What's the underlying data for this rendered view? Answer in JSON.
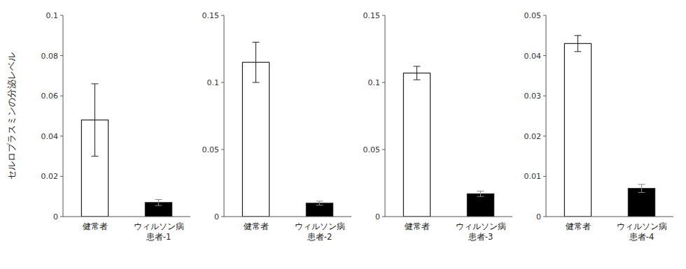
{
  "chart_data": [
    {
      "type": "bar",
      "ylabel": "セルロプラスミンの分泌レベル",
      "categories": [
        "健常者",
        "ウィルソン病\n患者-1"
      ],
      "values": [
        0.048,
        0.007
      ],
      "errors": [
        0.018,
        0.0015
      ],
      "colors": [
        "white",
        "black"
      ],
      "ylim": [
        0,
        0.1
      ],
      "yticks": [
        0,
        0.02,
        0.04,
        0.06,
        0.08,
        0.1
      ],
      "grid": false
    },
    {
      "type": "bar",
      "categories": [
        "健常者",
        "ウィルソン病\n患者-2"
      ],
      "values": [
        0.115,
        0.01
      ],
      "errors": [
        0.015,
        0.0015
      ],
      "colors": [
        "white",
        "black"
      ],
      "ylim": [
        0,
        0.15
      ],
      "yticks": [
        0,
        0.05,
        0.1,
        0.15
      ],
      "grid": false
    },
    {
      "type": "bar",
      "categories": [
        "健常者",
        "ウィルソン病\n患者-3"
      ],
      "values": [
        0.107,
        0.017
      ],
      "errors": [
        0.005,
        0.002
      ],
      "colors": [
        "white",
        "black"
      ],
      "ylim": [
        0,
        0.15
      ],
      "yticks": [
        0,
        0.05,
        0.1,
        0.15
      ],
      "grid": false
    },
    {
      "type": "bar",
      "categories": [
        "健常者",
        "ウィルソン病\n患者-4"
      ],
      "values": [
        0.043,
        0.007
      ],
      "errors": [
        0.002,
        0.001
      ],
      "colors": [
        "white",
        "black"
      ],
      "ylim": [
        0,
        0.05
      ],
      "yticks": [
        0,
        0.01,
        0.02,
        0.03,
        0.04,
        0.05
      ],
      "grid": false
    }
  ]
}
